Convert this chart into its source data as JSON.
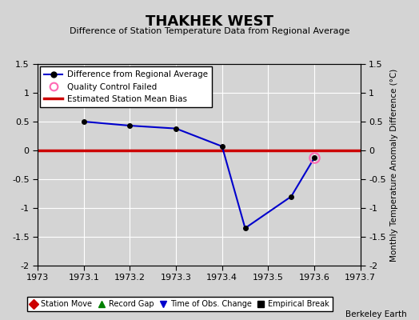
{
  "title": "THAKHEK WEST",
  "subtitle": "Difference of Station Temperature Data from Regional Average",
  "ylabel_right": "Monthly Temperature Anomaly Difference (°C)",
  "background_color": "#d4d4d4",
  "plot_bg_color": "#d4d4d4",
  "x_data": [
    1973.1,
    1973.2,
    1973.3,
    1973.4,
    1973.45,
    1973.55,
    1973.6
  ],
  "y_data": [
    0.5,
    0.43,
    0.38,
    0.07,
    -1.35,
    -0.8,
    -0.13
  ],
  "qc_failed_x": [
    1973.6
  ],
  "qc_failed_y": [
    -0.13
  ],
  "bias_y": 0.0,
  "x_min": 1973.0,
  "x_max": 1973.7,
  "y_min": -2.0,
  "y_max": 1.5,
  "xticks": [
    1973,
    1973.1,
    1973.2,
    1973.3,
    1973.4,
    1973.5,
    1973.6,
    1973.7
  ],
  "yticks": [
    -2,
    -1.5,
    -1,
    -0.5,
    0,
    0.5,
    1,
    1.5
  ],
  "line_color": "#0000cc",
  "marker_color": "#000000",
  "bias_color": "#cc0000",
  "qc_color": "#ff69b4",
  "grid_color": "#ffffff",
  "watermark": "Berkeley Earth",
  "legend1_entries": [
    {
      "label": "Difference from Regional Average"
    },
    {
      "label": "Quality Control Failed"
    },
    {
      "label": "Estimated Station Mean Bias"
    }
  ],
  "legend2_entries": [
    {
      "label": "Station Move",
      "color": "#cc0000",
      "marker": "D"
    },
    {
      "label": "Record Gap",
      "color": "#008000",
      "marker": "^"
    },
    {
      "label": "Time of Obs. Change",
      "color": "#0000cc",
      "marker": "v"
    },
    {
      "label": "Empirical Break",
      "color": "#000000",
      "marker": "s"
    }
  ]
}
